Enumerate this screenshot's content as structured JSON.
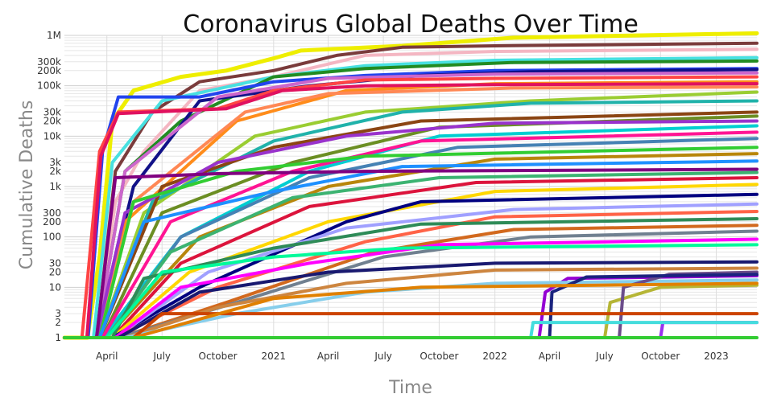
{
  "chart_data": {
    "type": "line",
    "title": "Coronavirus Global Deaths Over Time",
    "xlabel": "Time",
    "ylabel": "Cumulative Deaths",
    "y_scale": "log",
    "ylim": [
      1,
      1000000
    ],
    "xlim": [
      "2020-01-22",
      "2023-03-09"
    ],
    "grid": true,
    "legend": "none",
    "x_ticks": [
      {
        "date": "2020-04-01",
        "label": "April"
      },
      {
        "date": "2020-07-01",
        "label": "July"
      },
      {
        "date": "2020-10-01",
        "label": "October"
      },
      {
        "date": "2021-01-01",
        "label": "2021"
      },
      {
        "date": "2021-04-01",
        "label": "April"
      },
      {
        "date": "2021-07-01",
        "label": "July"
      },
      {
        "date": "2021-10-01",
        "label": "October"
      },
      {
        "date": "2022-01-01",
        "label": "2022"
      },
      {
        "date": "2022-04-01",
        "label": "April"
      },
      {
        "date": "2022-07-01",
        "label": "July"
      },
      {
        "date": "2022-10-01",
        "label": "October"
      },
      {
        "date": "2023-01-01",
        "label": "2023"
      }
    ],
    "y_ticks": [
      {
        "value": 1,
        "label": "1"
      },
      {
        "value": 2,
        "label": "2"
      },
      {
        "value": 3,
        "label": "3"
      },
      {
        "value": 10,
        "label": "10"
      },
      {
        "value": 20,
        "label": "20"
      },
      {
        "value": 30,
        "label": "30"
      },
      {
        "value": 100,
        "label": "100"
      },
      {
        "value": 200,
        "label": "200"
      },
      {
        "value": 300,
        "label": "300"
      },
      {
        "value": 1000,
        "label": "1k"
      },
      {
        "value": 2000,
        "label": "2k"
      },
      {
        "value": 3000,
        "label": "3k"
      },
      {
        "value": 10000,
        "label": "10k"
      },
      {
        "value": 20000,
        "label": "20k"
      },
      {
        "value": 30000,
        "label": "30k"
      },
      {
        "value": 100000,
        "label": "100k"
      },
      {
        "value": 200000,
        "label": "200k"
      },
      {
        "value": 300000,
        "label": "300k"
      },
      {
        "value": 1000000,
        "label": "1M"
      }
    ],
    "series": [
      {
        "color": "#eeee00",
        "x": [
          "2020-01-22",
          "2020-02-29",
          "2020-03-20",
          "2020-04-10",
          "2020-05-15",
          "2020-08-01",
          "2020-10-15",
          "2021-01-01",
          "2021-02-15",
          "2021-08-01",
          "2022-02-01",
          "2023-03-09"
        ],
        "y": [
          1,
          1,
          40,
          20000,
          80000,
          150000,
          200000,
          350000,
          500000,
          620000,
          900000,
          1100000
        ]
      },
      {
        "color": "#7a3b3b",
        "x": [
          "2020-01-22",
          "2020-03-15",
          "2020-04-15",
          "2020-06-15",
          "2020-09-01",
          "2021-01-01",
          "2021-04-15",
          "2021-08-01",
          "2022-01-01",
          "2023-03-09"
        ],
        "y": [
          1,
          1,
          2000,
          30000,
          120000,
          200000,
          400000,
          580000,
          620000,
          700000
        ]
      },
      {
        "color": "#f4b6c2",
        "x": [
          "2020-01-22",
          "2020-03-15",
          "2020-04-15",
          "2020-06-01",
          "2020-09-01",
          "2021-01-01",
          "2021-06-01",
          "2022-01-01",
          "2023-03-09"
        ],
        "y": [
          1,
          1,
          500,
          5000,
          80000,
          150000,
          400000,
          480000,
          530000
        ]
      },
      {
        "color": "#48e0e0",
        "x": [
          "2020-01-22",
          "2020-03-10",
          "2020-04-10",
          "2020-07-01",
          "2021-01-01",
          "2021-06-01",
          "2022-01-01",
          "2023-03-09"
        ],
        "y": [
          1,
          1,
          3000,
          50000,
          150000,
          250000,
          320000,
          360000
        ]
      },
      {
        "color": "#228b22",
        "x": [
          "2020-01-22",
          "2020-03-15",
          "2020-05-01",
          "2020-08-01",
          "2021-01-01",
          "2021-06-01",
          "2022-02-01",
          "2023-03-09"
        ],
        "y": [
          1,
          1,
          2000,
          20000,
          150000,
          220000,
          290000,
          310000
        ]
      },
      {
        "color": "#2244ee",
        "x": [
          "2020-01-22",
          "2020-03-01",
          "2020-03-25",
          "2020-04-20",
          "2020-09-01",
          "2021-01-01",
          "2021-06-01",
          "2022-01-01",
          "2023-03-09"
        ],
        "y": [
          1,
          1,
          5000,
          60000,
          60000,
          120000,
          160000,
          200000,
          220000
        ]
      },
      {
        "color": "#111188",
        "x": [
          "2020-01-22",
          "2020-03-15",
          "2020-05-15",
          "2020-09-01",
          "2021-03-01",
          "2021-09-01",
          "2022-03-01",
          "2023-03-09"
        ],
        "y": [
          1,
          1,
          1000,
          50000,
          100000,
          160000,
          190000,
          210000
        ]
      },
      {
        "color": "#cc66cc",
        "x": [
          "2020-01-22",
          "2020-03-15",
          "2020-05-01",
          "2020-10-01",
          "2021-04-01",
          "2022-01-01",
          "2023-03-09"
        ],
        "y": [
          1,
          1,
          2000,
          60000,
          140000,
          170000,
          180000
        ]
      },
      {
        "color": "#ff4444",
        "x": [
          "2020-01-22",
          "2020-02-20",
          "2020-03-20",
          "2020-04-20",
          "2020-10-01",
          "2021-01-01",
          "2021-06-01",
          "2022-01-01",
          "2023-03-09"
        ],
        "y": [
          1,
          1,
          5000,
          30000,
          35000,
          80000,
          130000,
          140000,
          150000
        ]
      },
      {
        "color": "#ff8c1a",
        "x": [
          "2020-01-22",
          "2020-03-15",
          "2020-05-01",
          "2020-11-01",
          "2021-05-01",
          "2022-01-01",
          "2023-03-09"
        ],
        "y": [
          1,
          1,
          200,
          20000,
          80000,
          110000,
          120000
        ]
      },
      {
        "color": "#e0115f",
        "x": [
          "2020-01-22",
          "2020-02-28",
          "2020-03-22",
          "2020-04-20",
          "2020-10-15",
          "2021-01-15",
          "2021-06-01",
          "2022-01-01",
          "2023-03-09"
        ],
        "y": [
          1,
          1,
          4000,
          28000,
          35000,
          80000,
          100000,
          105000,
          110000
        ]
      },
      {
        "color": "#ff8855",
        "x": [
          "2020-01-22",
          "2020-03-15",
          "2020-05-15",
          "2020-11-15",
          "2021-04-01",
          "2022-02-01",
          "2023-03-09"
        ],
        "y": [
          1,
          1,
          500,
          30000,
          70000,
          90000,
          95000
        ]
      },
      {
        "color": "#9acd32",
        "x": [
          "2020-01-22",
          "2020-03-20",
          "2020-06-01",
          "2020-12-01",
          "2021-06-01",
          "2022-03-01",
          "2023-03-09"
        ],
        "y": [
          1,
          1,
          300,
          10000,
          30000,
          50000,
          75000
        ]
      },
      {
        "color": "#20b2aa",
        "x": [
          "2020-01-22",
          "2020-03-20",
          "2020-06-15",
          "2021-01-01",
          "2021-08-01",
          "2022-03-01",
          "2023-03-09"
        ],
        "y": [
          1,
          1,
          500,
          8000,
          30000,
          45000,
          50000
        ]
      },
      {
        "color": "#8b4513",
        "x": [
          "2020-01-22",
          "2020-03-20",
          "2020-07-01",
          "2021-01-01",
          "2021-09-01",
          "2023-03-09"
        ],
        "y": [
          1,
          1,
          1000,
          6000,
          20000,
          30000
        ]
      },
      {
        "color": "#6b8e23",
        "x": [
          "2020-01-22",
          "2020-03-25",
          "2020-07-01",
          "2021-02-01",
          "2021-10-01",
          "2023-03-09"
        ],
        "y": [
          1,
          1,
          300,
          3000,
          15000,
          25000
        ]
      },
      {
        "color": "#9932cc",
        "x": [
          "2020-01-22",
          "2020-03-15",
          "2020-05-01",
          "2020-10-01",
          "2021-05-01",
          "2022-01-01",
          "2023-03-09"
        ],
        "y": [
          1,
          1,
          300,
          3000,
          10000,
          18000,
          20000
        ]
      },
      {
        "color": "#00ced1",
        "x": [
          "2020-01-22",
          "2020-03-25",
          "2020-08-01",
          "2021-03-01",
          "2021-10-01",
          "2023-03-09"
        ],
        "y": [
          1,
          1,
          100,
          2000,
          10000,
          16000
        ]
      },
      {
        "color": "#ff1493",
        "x": [
          "2020-01-22",
          "2020-03-25",
          "2020-07-15",
          "2021-02-01",
          "2021-09-01",
          "2023-03-09"
        ],
        "y": [
          1,
          1,
          200,
          2000,
          8000,
          12000
        ]
      },
      {
        "color": "#4682b4",
        "x": [
          "2020-01-22",
          "2020-04-01",
          "2020-08-01",
          "2021-03-01",
          "2021-11-01",
          "2023-03-09"
        ],
        "y": [
          1,
          1,
          100,
          1500,
          6000,
          9000
        ]
      },
      {
        "color": "#32cd32",
        "x": [
          "2020-01-22",
          "2020-03-20",
          "2020-05-15",
          "2020-11-01",
          "2021-06-01",
          "2023-03-09"
        ],
        "y": [
          1,
          1,
          500,
          2000,
          4000,
          6000
        ]
      },
      {
        "color": "#b8860b",
        "x": [
          "2020-01-22",
          "2020-04-01",
          "2020-09-01",
          "2021-04-01",
          "2022-01-01",
          "2023-03-09"
        ],
        "y": [
          1,
          1,
          100,
          1000,
          3500,
          4500
        ]
      },
      {
        "color": "#1e90ff",
        "x": [
          "2020-01-22",
          "2020-03-20",
          "2020-06-01",
          "2021-01-01",
          "2021-08-01",
          "2023-03-09"
        ],
        "y": [
          1,
          1,
          200,
          800,
          2500,
          3200
        ]
      },
      {
        "color": "#800080",
        "x": [
          "2020-01-22",
          "2020-03-15",
          "2020-04-15",
          "2020-10-01",
          "2021-06-01",
          "2023-03-09"
        ],
        "y": [
          1,
          1,
          1500,
          1800,
          2000,
          2200
        ]
      },
      {
        "color": "#3cb371",
        "x": [
          "2020-01-22",
          "2020-04-01",
          "2020-07-15",
          "2021-02-01",
          "2021-10-01",
          "2023-03-09"
        ],
        "y": [
          1,
          1,
          50,
          600,
          1500,
          1900
        ]
      },
      {
        "color": "#dc143c",
        "x": [
          "2020-01-22",
          "2020-04-10",
          "2020-08-01",
          "2021-03-01",
          "2021-12-01",
          "2023-03-09"
        ],
        "y": [
          1,
          1,
          30,
          400,
          1200,
          1500
        ]
      },
      {
        "color": "#ffd700",
        "x": [
          "2020-01-22",
          "2020-04-10",
          "2020-08-15",
          "2021-04-01",
          "2022-01-01",
          "2023-03-09"
        ],
        "y": [
          1,
          1,
          20,
          200,
          800,
          1100
        ]
      },
      {
        "color": "#000080",
        "x": [
          "2020-01-22",
          "2020-04-10",
          "2020-09-01",
          "2021-05-01",
          "2021-09-01",
          "2023-03-09"
        ],
        "y": [
          1,
          1,
          10,
          200,
          500,
          700
        ]
      },
      {
        "color": "#a0a0ff",
        "x": [
          "2020-01-22",
          "2020-04-15",
          "2020-09-15",
          "2021-05-01",
          "2022-02-01",
          "2023-03-09"
        ],
        "y": [
          1,
          1,
          20,
          150,
          350,
          450
        ]
      },
      {
        "color": "#ff6347",
        "x": [
          "2020-01-22",
          "2020-04-15",
          "2020-10-01",
          "2021-06-01",
          "2022-01-01",
          "2023-03-09"
        ],
        "y": [
          1,
          1,
          10,
          80,
          250,
          320
        ]
      },
      {
        "color": "#2e8b57",
        "x": [
          "2020-01-22",
          "2020-04-10",
          "2020-06-01",
          "2021-01-01",
          "2021-09-01",
          "2023-03-09"
        ],
        "y": [
          1,
          1,
          15,
          60,
          180,
          230
        ]
      },
      {
        "color": "#d2691e",
        "x": [
          "2020-01-22",
          "2020-04-20",
          "2020-10-15",
          "2021-06-15",
          "2022-02-01",
          "2023-03-09"
        ],
        "y": [
          1,
          1,
          5,
          50,
          140,
          170
        ]
      },
      {
        "color": "#708090",
        "x": [
          "2020-01-22",
          "2020-04-20",
          "2020-11-01",
          "2021-07-01",
          "2022-03-01",
          "2023-03-09"
        ],
        "y": [
          1,
          1,
          5,
          40,
          100,
          130
        ]
      },
      {
        "color": "#ff00ff",
        "x": [
          "2020-01-22",
          "2020-04-15",
          "2020-08-01",
          "2021-03-01",
          "2021-10-01",
          "2023-03-09"
        ],
        "y": [
          1,
          1,
          10,
          30,
          70,
          90
        ]
      },
      {
        "color": "#00fa9a",
        "x": [
          "2020-01-22",
          "2020-04-01",
          "2020-07-01",
          "2021-01-01",
          "2021-08-01",
          "2023-03-09"
        ],
        "y": [
          1,
          1,
          20,
          40,
          60,
          70
        ]
      },
      {
        "color": "#191970",
        "x": [
          "2020-01-22",
          "2020-04-20",
          "2020-09-01",
          "2021-04-01",
          "2022-01-01",
          "2023-03-09"
        ],
        "y": [
          1,
          1,
          8,
          20,
          30,
          32
        ]
      },
      {
        "color": "#cd853f",
        "x": [
          "2020-01-22",
          "2020-05-01",
          "2020-10-01",
          "2021-05-01",
          "2022-01-01",
          "2023-03-09"
        ],
        "y": [
          1,
          1,
          4,
          12,
          22,
          24
        ]
      },
      {
        "color": "#9400d3",
        "x": [
          "2020-01-22",
          "2022-03-15",
          "2022-03-25",
          "2022-05-01",
          "2023-03-09"
        ],
        "y": [
          1,
          1,
          8,
          15,
          17
        ]
      },
      {
        "color": "#87ceeb",
        "x": [
          "2020-01-22",
          "2020-05-01",
          "2020-11-01",
          "2021-06-01",
          "2022-01-01",
          "2023-03-09"
        ],
        "y": [
          1,
          1,
          3,
          8,
          12,
          14
        ]
      },
      {
        "color": "#b5b535",
        "x": [
          "2020-01-22",
          "2022-07-01",
          "2022-07-10",
          "2022-10-01",
          "2023-03-09"
        ],
        "y": [
          1,
          1,
          5,
          10,
          11
        ]
      },
      {
        "color": "#6b4c8a",
        "x": [
          "2020-01-22",
          "2022-07-25",
          "2022-08-01",
          "2022-10-15",
          "2023-03-09"
        ],
        "y": [
          1,
          1,
          10,
          18,
          20
        ]
      },
      {
        "color": "#1a237e",
        "x": [
          "2020-01-22",
          "2022-04-01",
          "2022-04-05",
          "2022-06-01",
          "2023-03-09"
        ],
        "y": [
          1,
          1,
          8,
          16,
          18
        ]
      },
      {
        "color": "#cc4400",
        "x": [
          "2020-01-22",
          "2020-05-15",
          "2020-07-01",
          "2023-03-09"
        ],
        "y": [
          1,
          1,
          3,
          3
        ]
      },
      {
        "color": "#e08000",
        "x": [
          "2020-01-22",
          "2020-05-15",
          "2021-01-01",
          "2021-09-01",
          "2023-03-09"
        ],
        "y": [
          1,
          1,
          6,
          10,
          12
        ]
      },
      {
        "color": "#9932ee",
        "x": [
          "2020-01-22",
          "2022-10-01",
          "2022-10-05",
          "2023-03-09"
        ],
        "y": [
          1,
          1,
          2,
          2
        ]
      },
      {
        "color": "#44dddd",
        "x": [
          "2020-01-22",
          "2022-03-01",
          "2022-03-05",
          "2023-03-09"
        ],
        "y": [
          1,
          1,
          2,
          2
        ]
      },
      {
        "color": "#33cc33",
        "x": [
          "2020-01-22",
          "2023-03-09"
        ],
        "y": [
          1,
          1
        ]
      }
    ]
  }
}
